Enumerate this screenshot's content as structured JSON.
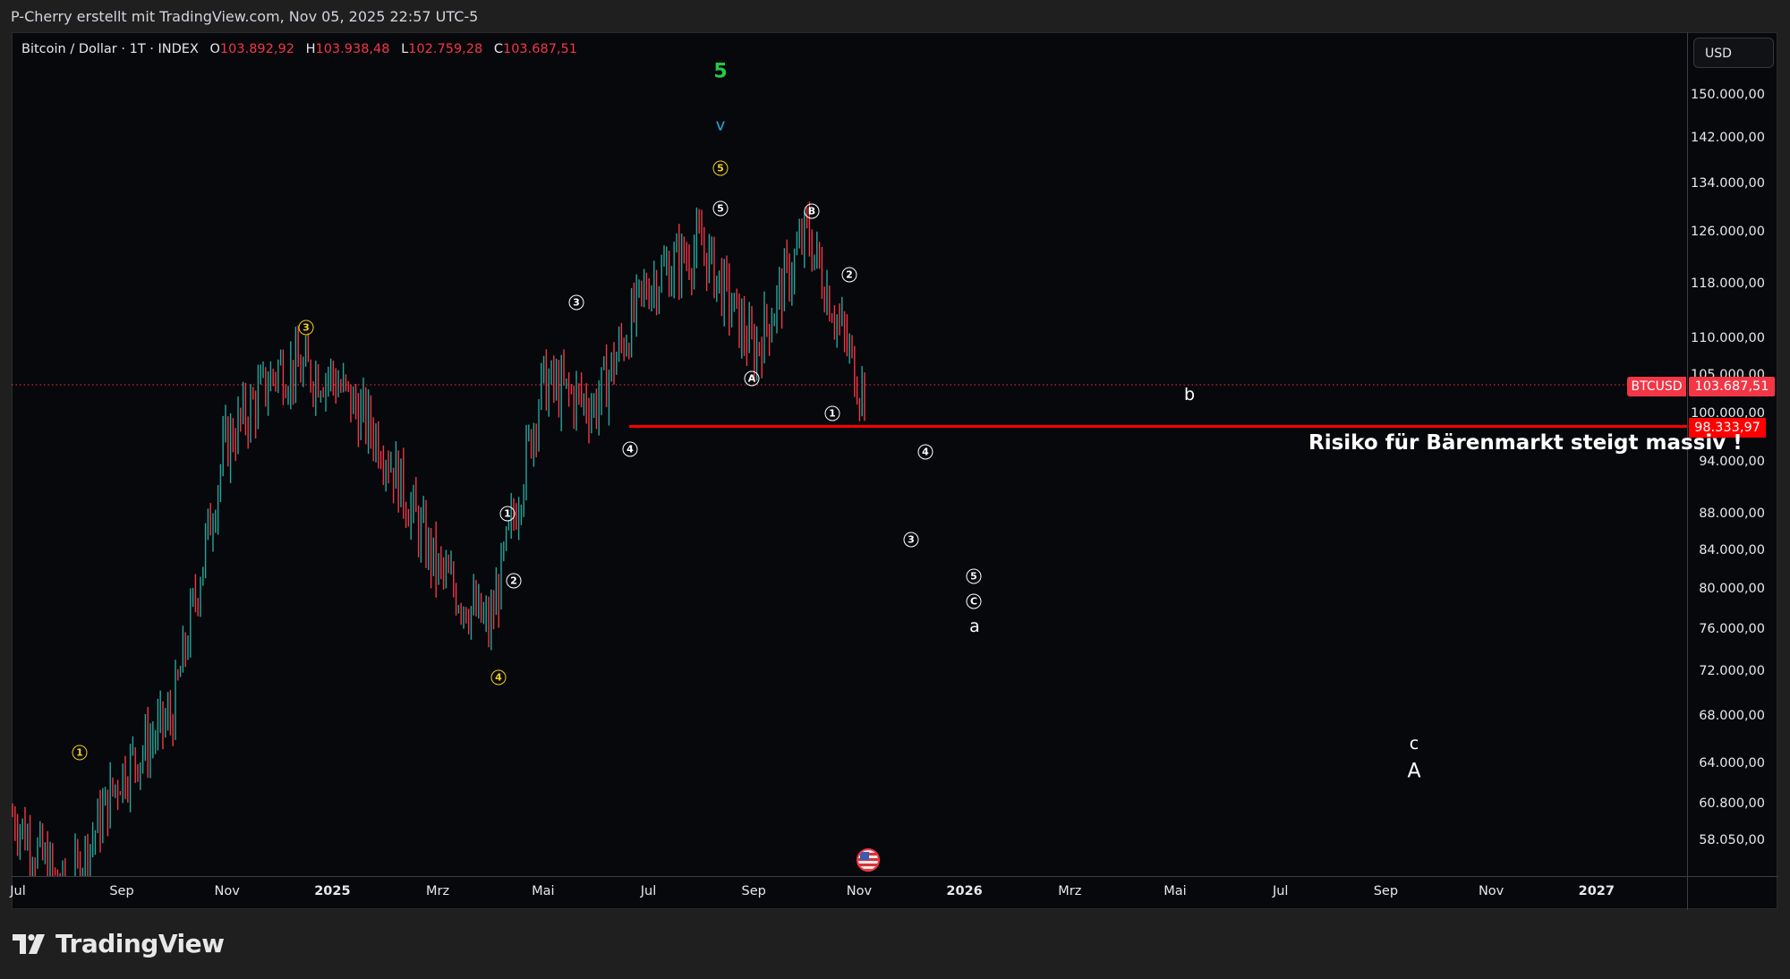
{
  "credit": "P-Cherry erstellt mit TradingView.com, Nov 05, 2025 22:57 UTC-5",
  "legend": {
    "symbol": "Bitcoin / Dollar · 1T · INDEX",
    "o_label": "O",
    "o": "103.892,92",
    "h_label": "H",
    "h": "103.938,48",
    "l_label": "L",
    "l": "102.759,28",
    "c_label": "C",
    "c": "103.687,51"
  },
  "currency_button": "USD",
  "price_badges": {
    "symbol": "BTCUSD",
    "last": "103.687,51",
    "level": "98.333,97"
  },
  "annotation": "Risiko für Bärenmarkt steigt massiv !",
  "logo_text": "TradingView",
  "colors": {
    "up": "#26a69a",
    "down": "#f23645",
    "level_line": "#ff0000",
    "wave_yellow": "#f0d020",
    "wave_green": "#22cc44",
    "wave_cyan": "#22aadd",
    "background": "#07080c"
  },
  "chart_data": {
    "type": "bar",
    "title": "Bitcoin / Dollar · 1T · INDEX",
    "xlabel": "",
    "ylabel": "USD",
    "scale": "log",
    "ylim": [
      55000,
      158000
    ],
    "grid": false,
    "price_ticks": [
      "150.000,00",
      "142.000,00",
      "134.000,00",
      "126.000,00",
      "118.000,00",
      "110.000,00",
      "105.000,00",
      "100.000,00",
      "94.000,00",
      "88.000,00",
      "84.000,00",
      "80.000,00",
      "76.000,00",
      "72.000,00",
      "68.000,00",
      "64.000,00",
      "60.800,00",
      "58.050,00"
    ],
    "time_ticks": [
      {
        "label": "Jul",
        "bold": false
      },
      {
        "label": "Sep",
        "bold": false
      },
      {
        "label": "Nov",
        "bold": false
      },
      {
        "label": "2025",
        "bold": true
      },
      {
        "label": "Mrz",
        "bold": false
      },
      {
        "label": "Mai",
        "bold": false
      },
      {
        "label": "Jul",
        "bold": false
      },
      {
        "label": "Sep",
        "bold": false
      },
      {
        "label": "Nov",
        "bold": false
      },
      {
        "label": "2026",
        "bold": true
      },
      {
        "label": "Mrz",
        "bold": false
      },
      {
        "label": "Mai",
        "bold": false
      },
      {
        "label": "Jul",
        "bold": false
      },
      {
        "label": "Sep",
        "bold": false
      },
      {
        "label": "Nov",
        "bold": false
      },
      {
        "label": "2027",
        "bold": true
      }
    ],
    "last_price": 103687.51,
    "horizontal_level": 98333.97,
    "approx_path": [
      {
        "date": "2024-07",
        "price": 60000
      },
      {
        "date": "2024-08",
        "price": 54000
      },
      {
        "date": "2024-09",
        "price": 63000
      },
      {
        "date": "2024-10",
        "price": 68000
      },
      {
        "date": "2024-11",
        "price": 96000
      },
      {
        "date": "2024-12",
        "price": 106000
      },
      {
        "date": "2025-01",
        "price": 105000
      },
      {
        "date": "2025-02",
        "price": 96000
      },
      {
        "date": "2025-03",
        "price": 82000
      },
      {
        "date": "2025-04",
        "price": 76000
      },
      {
        "date": "2025-05",
        "price": 104000
      },
      {
        "date": "2025-06",
        "price": 101000
      },
      {
        "date": "2025-07",
        "price": 118000
      },
      {
        "date": "2025-08",
        "price": 124000
      },
      {
        "date": "2025-09",
        "price": 108000
      },
      {
        "date": "2025-10",
        "price": 126000
      },
      {
        "date": "2025-11",
        "price": 103687
      }
    ],
    "wave_labels": [
      {
        "text": "①",
        "color": "yellow",
        "date": "2024-08",
        "price": 64500
      },
      {
        "text": "③",
        "color": "yellow",
        "date": "2024-12",
        "price": 113000
      },
      {
        "text": "④",
        "color": "yellow",
        "date": "2025-04",
        "price": 70000
      },
      {
        "text": "⑤",
        "color": "yellow",
        "date": "2025-08",
        "price": 137000
      },
      {
        "text": "5",
        "color": "green",
        "date": "2025-08",
        "price": 155000
      },
      {
        "text": "v",
        "color": "cyan",
        "date": "2025-08",
        "price": 144000
      },
      {
        "text": "①",
        "color": "white",
        "date": "2025-03",
        "price": 88000
      },
      {
        "text": "②",
        "color": "white",
        "date": "2025-04",
        "price": 81000
      },
      {
        "text": "③",
        "color": "white",
        "date": "2025-05",
        "price": 115000
      },
      {
        "text": "④",
        "color": "white",
        "date": "2025-06",
        "price": 96000
      },
      {
        "text": "⑤",
        "color": "white",
        "date": "2025-08",
        "price": 130000
      },
      {
        "text": "Ⓐ",
        "color": "white",
        "date": "2025-09",
        "price": 106000
      },
      {
        "text": "Ⓑ",
        "color": "white",
        "date": "2025-10",
        "price": 130000
      },
      {
        "text": "①",
        "color": "white",
        "date": "2025-10",
        "price": 101000
      },
      {
        "text": "②",
        "color": "white",
        "date": "2025-10",
        "price": 120000
      },
      {
        "text": "④",
        "color": "white",
        "date": "2025-11",
        "price": 96000
      },
      {
        "text": "③",
        "color": "white",
        "date": "2025-11",
        "price": 86000
      },
      {
        "text": "⑤",
        "color": "white",
        "date": "2025-12",
        "price": 81500
      },
      {
        "text": "Ⓒ",
        "color": "white",
        "date": "2025-12",
        "price": 79500
      },
      {
        "text": "a",
        "color": "white",
        "date": "2025-12",
        "price": 77000
      },
      {
        "text": "b",
        "color": "white",
        "date": "2026-04",
        "price": 102500
      },
      {
        "text": "c",
        "color": "white",
        "date": "2026-09",
        "price": 66000
      },
      {
        "text": "A",
        "color": "white",
        "date": "2026-09",
        "price": 64000
      }
    ]
  }
}
